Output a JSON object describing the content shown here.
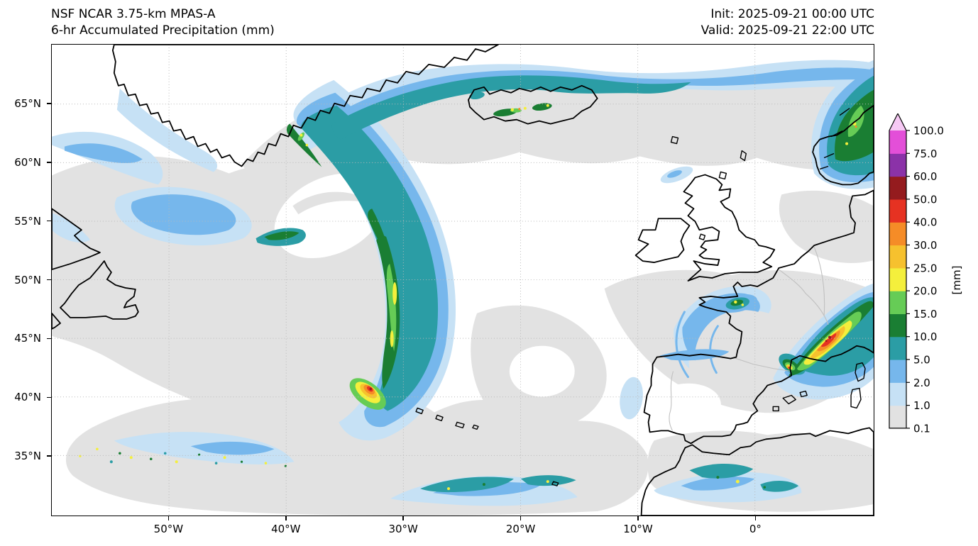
{
  "figure": {
    "title_line1": "NSF NCAR 3.75-km MPAS-A",
    "title_line2": "6-hr Accumulated Precipitation (mm)",
    "init_time": "Init: 2025-09-21 00:00 UTC",
    "valid_time": "Valid: 2025-09-21 22:00 UTC"
  },
  "map": {
    "x_ticks": [
      {
        "label": "50°W",
        "lon": -50
      },
      {
        "label": "40°W",
        "lon": -40
      },
      {
        "label": "30°W",
        "lon": -30
      },
      {
        "label": "20°W",
        "lon": -20
      },
      {
        "label": "10°W",
        "lon": -10
      },
      {
        "label": "0°",
        "lon": 0
      }
    ],
    "y_ticks": [
      {
        "label": "65°N",
        "lat": 65
      },
      {
        "label": "60°N",
        "lat": 60
      },
      {
        "label": "55°N",
        "lat": 55
      },
      {
        "label": "50°N",
        "lat": 50
      },
      {
        "label": "45°N",
        "lat": 45
      },
      {
        "label": "40°N",
        "lat": 40
      },
      {
        "label": "35°N",
        "lat": 35
      }
    ]
  },
  "colorbar": {
    "unit": "[mm]",
    "tick_labels": [
      "0.1",
      "1.0",
      "2.0",
      "5.0",
      "10.0",
      "15.0",
      "20.0",
      "25.0",
      "30.0",
      "40.0",
      "50.0",
      "60.0",
      "75.0",
      "100.0"
    ],
    "segment_colors_bottom_to_top": [
      "#e2e2e2",
      "#c6e1f5",
      "#76b7ec",
      "#2b9da5",
      "#1a7e33",
      "#66cc56",
      "#f4ef3c",
      "#f6c12e",
      "#f58c27",
      "#e63222",
      "#941b1e",
      "#8b32a8",
      "#e34fd8"
    ],
    "over_color": "#f6c9f4",
    "frame_color": "#000000"
  }
}
